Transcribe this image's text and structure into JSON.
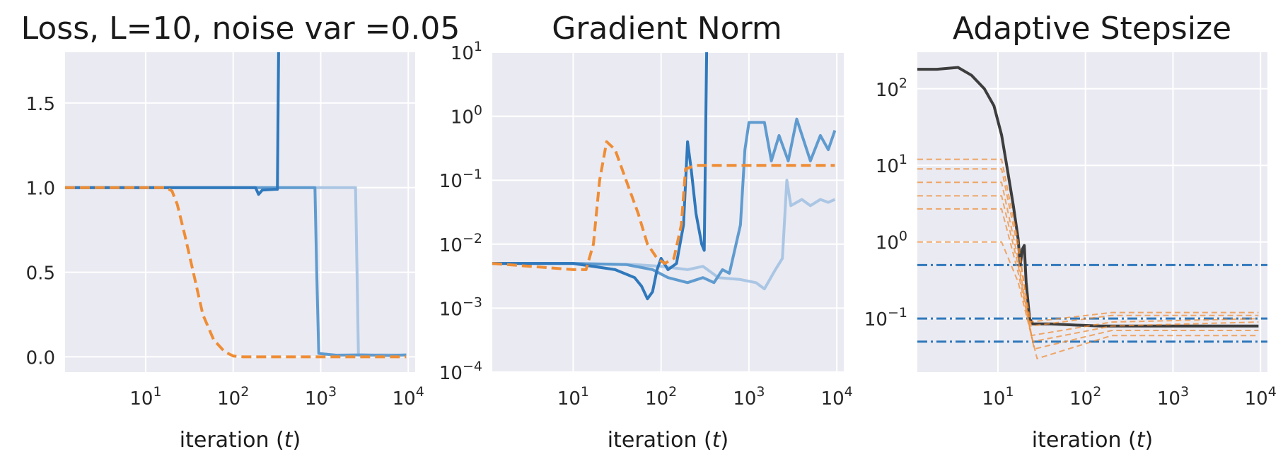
{
  "chart_data": [
    {
      "type": "line",
      "title": "Loss, L=10, noise var =0.05",
      "xlabel": "iteration (t)",
      "ylabel": "",
      "xscale": "log",
      "yscale": "linear",
      "xlim": [
        1.2,
        12000
      ],
      "ylim": [
        -0.09,
        1.8
      ],
      "grid": true,
      "xticks": [
        10,
        100,
        1000,
        10000
      ],
      "xtick_labels": [
        "10^1",
        "10^2",
        "10^3",
        "10^4"
      ],
      "yticks": [
        0.0,
        0.5,
        1.0,
        1.5
      ],
      "ytick_labels": [
        "0.0",
        "0.5",
        "1.0",
        "1.5"
      ],
      "series": [
        {
          "color": "#aac6e4",
          "style": "solid",
          "points": [
            [
              1.2,
              1.0
            ],
            [
              100,
              1.0
            ],
            [
              1000,
              1.0
            ],
            [
              2500,
              1.0
            ],
            [
              2600,
              0.5
            ],
            [
              2700,
              0.01
            ],
            [
              3000,
              0.01
            ],
            [
              5000,
              0.012
            ],
            [
              9500,
              0.01
            ]
          ]
        },
        {
          "color": "#5f9bcf",
          "style": "solid",
          "points": [
            [
              1.2,
              1.0
            ],
            [
              100,
              1.0
            ],
            [
              860,
              1.0
            ],
            [
              900,
              0.5
            ],
            [
              950,
              0.02
            ],
            [
              1500,
              0.01
            ],
            [
              3000,
              0.012
            ],
            [
              6000,
              0.008
            ],
            [
              9500,
              0.012
            ]
          ]
        },
        {
          "color": "#2f78bc",
          "style": "solid",
          "points": [
            [
              1.2,
              1.0
            ],
            [
              180,
              1.0
            ],
            [
              195,
              0.96
            ],
            [
              215,
              0.985
            ],
            [
              300,
              0.99
            ],
            [
              320,
              0.99
            ],
            [
              330,
              1.8
            ]
          ]
        },
        {
          "color": "#ef8d35",
          "style": "dashed",
          "points": [
            [
              1.2,
              1.0
            ],
            [
              17,
              1.0
            ],
            [
              20,
              0.98
            ],
            [
              23,
              0.9
            ],
            [
              28,
              0.72
            ],
            [
              35,
              0.5
            ],
            [
              45,
              0.25
            ],
            [
              60,
              0.1
            ],
            [
              80,
              0.03
            ],
            [
              100,
              0.005
            ],
            [
              130,
              0.0
            ],
            [
              1000,
              0.0
            ],
            [
              9500,
              0.0
            ]
          ]
        }
      ]
    },
    {
      "type": "line",
      "title": "Gradient Norm",
      "xlabel": "iteration (t)",
      "ylabel": "",
      "xscale": "log",
      "yscale": "log",
      "xlim": [
        1.2,
        12000
      ],
      "ylim": [
        0.0001,
        10
      ],
      "grid": true,
      "xticks": [
        10,
        100,
        1000,
        10000
      ],
      "xtick_labels": [
        "10^1",
        "10^2",
        "10^3",
        "10^4"
      ],
      "yticks": [
        0.0001,
        0.001,
        0.01,
        0.1,
        1,
        10
      ],
      "ytick_labels": [
        "10^-4",
        "10^-3",
        "10^-2",
        "10^-1",
        "10^0",
        "10^1"
      ],
      "series": [
        {
          "color": "#aac6e4",
          "style": "solid",
          "points": [
            [
              1.2,
              0.005
            ],
            [
              10,
              0.005
            ],
            [
              50,
              0.0048
            ],
            [
              100,
              0.0045
            ],
            [
              200,
              0.004
            ],
            [
              300,
              0.0045
            ],
            [
              450,
              0.003
            ],
            [
              800,
              0.0028
            ],
            [
              1200,
              0.0025
            ],
            [
              1500,
              0.002
            ],
            [
              2000,
              0.004
            ],
            [
              2400,
              0.006
            ],
            [
              2700,
              0.1
            ],
            [
              3000,
              0.04
            ],
            [
              4000,
              0.05
            ],
            [
              5000,
              0.04
            ],
            [
              6500,
              0.05
            ],
            [
              8000,
              0.045
            ],
            [
              9500,
              0.05
            ]
          ]
        },
        {
          "color": "#5f9bcf",
          "style": "solid",
          "points": [
            [
              1.2,
              0.005
            ],
            [
              10,
              0.005
            ],
            [
              40,
              0.0048
            ],
            [
              80,
              0.004
            ],
            [
              120,
              0.003
            ],
            [
              200,
              0.0025
            ],
            [
              300,
              0.003
            ],
            [
              400,
              0.0025
            ],
            [
              500,
              0.004
            ],
            [
              600,
              0.0035
            ],
            [
              800,
              0.02
            ],
            [
              900,
              0.3
            ],
            [
              1000,
              0.8
            ],
            [
              1500,
              0.8
            ],
            [
              1800,
              0.2
            ],
            [
              2200,
              0.5
            ],
            [
              2800,
              0.2
            ],
            [
              3500,
              0.9
            ],
            [
              5000,
              0.2
            ],
            [
              6500,
              0.5
            ],
            [
              8000,
              0.3
            ],
            [
              9500,
              0.6
            ]
          ]
        },
        {
          "color": "#2f78bc",
          "style": "solid",
          "points": [
            [
              1.2,
              0.005
            ],
            [
              10,
              0.005
            ],
            [
              30,
              0.004
            ],
            [
              50,
              0.003
            ],
            [
              60,
              0.0022
            ],
            [
              70,
              0.0014
            ],
            [
              80,
              0.0018
            ],
            [
              90,
              0.004
            ],
            [
              100,
              0.006
            ],
            [
              120,
              0.004
            ],
            [
              150,
              0.005
            ],
            [
              180,
              0.02
            ],
            [
              200,
              0.4
            ],
            [
              220,
              0.15
            ],
            [
              250,
              0.03
            ],
            [
              290,
              0.01
            ],
            [
              310,
              0.008
            ],
            [
              330,
              10
            ]
          ]
        },
        {
          "color": "#ef8d35",
          "style": "dashed",
          "points": [
            [
              1.2,
              0.005
            ],
            [
              10,
              0.004
            ],
            [
              14,
              0.004
            ],
            [
              17,
              0.01
            ],
            [
              20,
              0.1
            ],
            [
              24,
              0.4
            ],
            [
              30,
              0.3
            ],
            [
              40,
              0.1
            ],
            [
              55,
              0.03
            ],
            [
              70,
              0.01
            ],
            [
              90,
              0.006
            ],
            [
              110,
              0.005
            ],
            [
              140,
              0.006
            ],
            [
              170,
              0.02
            ],
            [
              190,
              0.15
            ],
            [
              250,
              0.17
            ],
            [
              500,
              0.17
            ],
            [
              1000,
              0.17
            ],
            [
              5000,
              0.17
            ],
            [
              9500,
              0.17
            ]
          ]
        }
      ]
    },
    {
      "type": "line",
      "title": "Adaptive Stepsize",
      "xlabel": "iteration (t)",
      "ylabel": "",
      "xscale": "log",
      "yscale": "log",
      "xlim": [
        1.2,
        12000
      ],
      "ylim": [
        0.02,
        300
      ],
      "grid": true,
      "xticks": [
        10,
        100,
        1000,
        10000
      ],
      "xtick_labels": [
        "10^1",
        "10^2",
        "10^3",
        "10^4"
      ],
      "yticks": [
        0.1,
        1,
        10,
        100
      ],
      "ytick_labels": [
        "10^-1",
        "10^0",
        "10^1",
        "10^2"
      ],
      "hlines": [
        {
          "y": 0.5,
          "color": "#2f78bc",
          "style": "dashdot"
        },
        {
          "y": 0.1,
          "color": "#2f78bc",
          "style": "dashdot"
        },
        {
          "y": 0.05,
          "color": "#2f78bc",
          "style": "dashdot"
        }
      ],
      "series": [
        {
          "color": "#3d3d3d",
          "style": "solid",
          "points": [
            [
              1.2,
              180
            ],
            [
              2,
              180
            ],
            [
              3.5,
              190
            ],
            [
              5,
              150
            ],
            [
              7,
              100
            ],
            [
              9,
              60
            ],
            [
              11,
              25
            ],
            [
              13,
              8
            ],
            [
              15,
              3
            ],
            [
              17,
              1.1
            ],
            [
              18,
              0.5
            ],
            [
              19,
              0.8
            ],
            [
              20,
              0.9
            ],
            [
              21,
              0.3
            ],
            [
              23,
              0.1
            ],
            [
              25,
              0.085
            ],
            [
              40,
              0.085
            ],
            [
              80,
              0.082
            ],
            [
              150,
              0.08
            ],
            [
              400,
              0.08
            ],
            [
              1000,
              0.08
            ],
            [
              9500,
              0.08
            ]
          ]
        },
        {
          "color": "#ef8d35",
          "style": "dashed",
          "group": "orange-bundle",
          "points": [
            [
              1.2,
              12
            ],
            [
              11,
              12
            ],
            [
              17,
              1
            ],
            [
              23,
              0.09
            ],
            [
              200,
              0.12
            ],
            [
              9500,
              0.12
            ]
          ]
        },
        {
          "color": "#ef8d35",
          "style": "dashed",
          "group": "orange-bundle",
          "points": [
            [
              1.2,
              9
            ],
            [
              11,
              9
            ],
            [
              17,
              0.8
            ],
            [
              24,
              0.08
            ],
            [
              200,
              0.11
            ],
            [
              9500,
              0.11
            ]
          ]
        },
        {
          "color": "#ef8d35",
          "style": "dashed",
          "group": "orange-bundle",
          "points": [
            [
              1.2,
              6
            ],
            [
              11,
              6
            ],
            [
              17,
              0.6
            ],
            [
              24,
              0.06
            ],
            [
              200,
              0.09
            ],
            [
              9500,
              0.1
            ]
          ]
        },
        {
          "color": "#ef8d35",
          "style": "dashed",
          "group": "orange-bundle",
          "points": [
            [
              1.2,
              4
            ],
            [
              11,
              4
            ],
            [
              17,
              0.5
            ],
            [
              25,
              0.05
            ],
            [
              200,
              0.08
            ],
            [
              9500,
              0.09
            ]
          ]
        },
        {
          "color": "#ef8d35",
          "style": "dashed",
          "group": "orange-bundle",
          "points": [
            [
              1.2,
              2.7
            ],
            [
              11,
              2.7
            ],
            [
              17,
              0.4
            ],
            [
              26,
              0.04
            ],
            [
              200,
              0.07
            ],
            [
              9500,
              0.07
            ]
          ]
        },
        {
          "color": "#ef8d35",
          "style": "dashed",
          "group": "orange-bundle",
          "points": [
            [
              1.2,
              1
            ],
            [
              11,
              1
            ],
            [
              17,
              0.3
            ],
            [
              28,
              0.03
            ],
            [
              200,
              0.06
            ],
            [
              9500,
              0.06
            ]
          ]
        }
      ]
    }
  ]
}
